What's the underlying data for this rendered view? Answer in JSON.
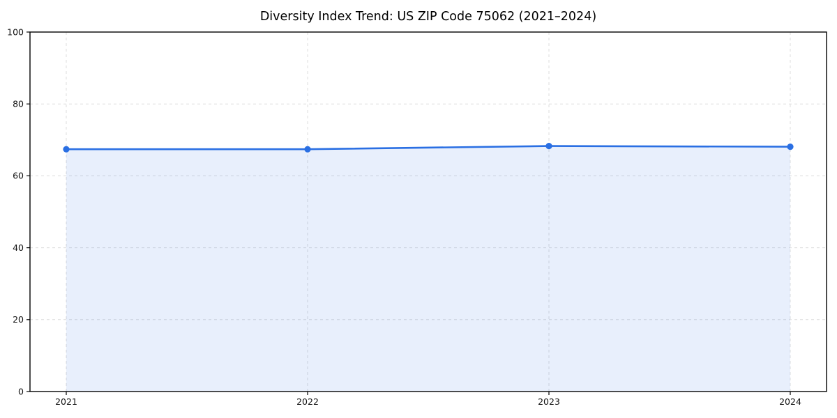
{
  "chart_data": {
    "type": "area",
    "title": "Diversity Index Trend: US ZIP Code 75062 (2021–2024)",
    "categories": [
      "2021",
      "2022",
      "2023",
      "2024"
    ],
    "series": [
      {
        "name": "Diversity Index",
        "values": [
          67.4,
          67.4,
          68.3,
          68.1
        ]
      }
    ],
    "xlabel": "",
    "ylabel": "",
    "ylim": [
      0,
      100
    ],
    "yticks": [
      0,
      20,
      40,
      60,
      80,
      100
    ],
    "grid": {
      "style": "dashed",
      "horizontal": true,
      "vertical": true
    },
    "legend": "none",
    "colors": {
      "line": "#2a6fe3",
      "marker": "#2a6fe3",
      "fill": "rgba(42,111,227,0.11)",
      "gridline": "#dcdcdc",
      "axis": "#000000",
      "tick_text": "#111111",
      "background": "#ffffff"
    }
  }
}
